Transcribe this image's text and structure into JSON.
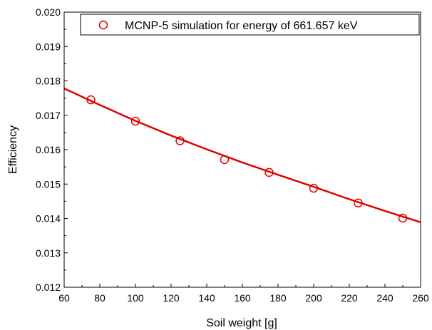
{
  "chart_data": {
    "type": "scatter",
    "title": "",
    "xlabel": "Soil weight [g]",
    "ylabel": "Efficiency",
    "xlim": [
      60,
      260
    ],
    "ylim": [
      0.012,
      0.02
    ],
    "x_ticks": [
      "60",
      "80",
      "100",
      "120",
      "140",
      "160",
      "180",
      "200",
      "220",
      "240",
      "260"
    ],
    "y_ticks": [
      "0.012",
      "0.013",
      "0.014",
      "0.015",
      "0.016",
      "0.017",
      "0.018",
      "0.019",
      "0.020"
    ],
    "grid": false,
    "legend_position": "top-right",
    "series": [
      {
        "name": "MCNP-5 simulation for energy of 661.657 keV",
        "marker": "open-circle",
        "color": "#e00000",
        "x": [
          75,
          100,
          125,
          150,
          175,
          200,
          225,
          250
        ],
        "y": [
          0.01745,
          0.01683,
          0.01626,
          0.01571,
          0.01534,
          0.01488,
          0.01445,
          0.01401
        ]
      }
    ],
    "fit_curve": {
      "color": "#e00000",
      "x": [
        60,
        80,
        100,
        120,
        140,
        160,
        180,
        200,
        220,
        240,
        260
      ],
      "y": [
        0.01778,
        0.0173,
        0.01684,
        0.01641,
        0.01601,
        0.01563,
        0.01527,
        0.01492,
        0.01456,
        0.01422,
        0.01389
      ]
    }
  }
}
